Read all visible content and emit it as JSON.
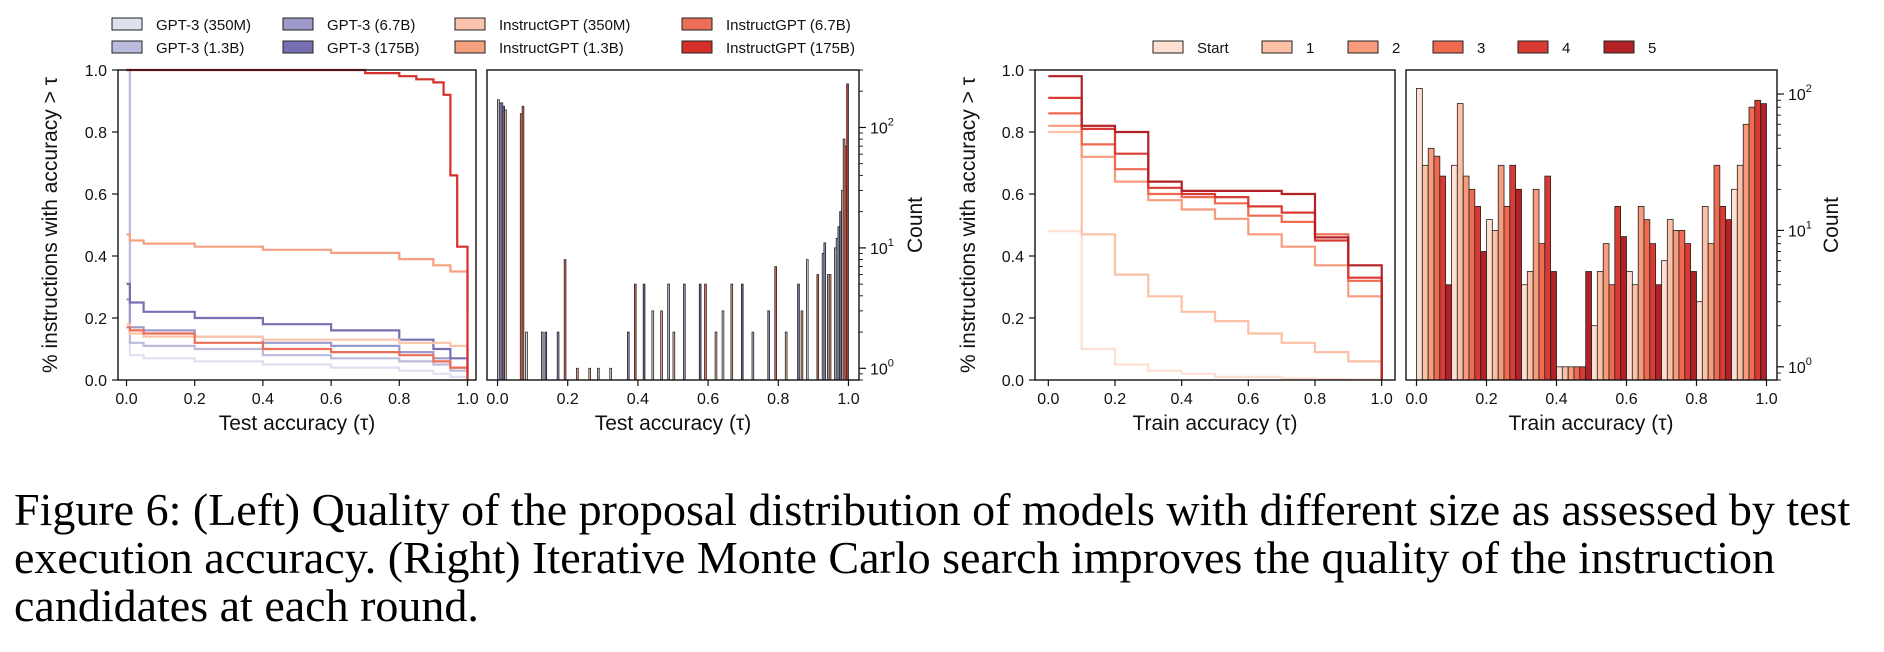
{
  "colors": {
    "gpt350": "#e0e1f0",
    "gpt13": "#bbbcdd",
    "gpt67": "#9c9acb",
    "gpt175": "#7670b2",
    "ins350": "#f9c4ab",
    "ins13": "#f4a081",
    "ins67": "#ec6e56",
    "ins175": "#d52e2b",
    "r0": "#fde0d2",
    "r1": "#fcc0a4",
    "r2": "#f89a7c",
    "r3": "#f06a50",
    "r4": "#d93a34",
    "r5": "#b32127"
  },
  "legend_left": [
    "GPT-3 (350M)",
    "GPT-3 (1.3B)",
    "GPT-3 (6.7B)",
    "GPT-3 (175B)",
    "InstructGPT (350M)",
    "InstructGPT (1.3B)",
    "InstructGPT (6.7B)",
    "InstructGPT (175B)"
  ],
  "legend_right": [
    "Start",
    "1",
    "2",
    "3",
    "4",
    "5"
  ],
  "caption": "Figure 6: (Left) Quality of the proposal distribution of models with different size as assessed by test execution accuracy. (Right) Iterative Monte Carlo search improves the quality of the instruction candidates at each round.",
  "chart_data": [
    {
      "type": "line",
      "subtype": "step",
      "xlabel": "Test accuracy (τ)",
      "ylabel": "% instructions with accuracy > τ",
      "xlim": [
        0,
        1
      ],
      "ylim": [
        0,
        1
      ],
      "xticks": [
        "0.0",
        "0.2",
        "0.4",
        "0.6",
        "0.8",
        "1.0"
      ],
      "yticks": [
        "0.0",
        "0.2",
        "0.4",
        "0.6",
        "0.8",
        "1.0"
      ],
      "series": [
        {
          "name": "GPT-3 (350M)",
          "color_key": "gpt350",
          "x": [
            0,
            0.01,
            0.05,
            0.2,
            0.4,
            0.6,
            0.8,
            0.9,
            0.95,
            1.0
          ],
          "y": [
            1.0,
            0.08,
            0.07,
            0.06,
            0.05,
            0.04,
            0.03,
            0.02,
            0.01,
            0.0
          ]
        },
        {
          "name": "GPT-3 (1.3B)",
          "color_key": "gpt13",
          "x": [
            0,
            0.01,
            0.05,
            0.2,
            0.4,
            0.6,
            0.8,
            0.9,
            0.95,
            1.0
          ],
          "y": [
            1.0,
            0.12,
            0.11,
            0.1,
            0.08,
            0.07,
            0.06,
            0.05,
            0.03,
            0.01
          ]
        },
        {
          "name": "GPT-3 (6.7B)",
          "color_key": "gpt67",
          "x": [
            0,
            0.01,
            0.05,
            0.2,
            0.4,
            0.6,
            0.8,
            0.9,
            0.95,
            1.0
          ],
          "y": [
            0.26,
            0.17,
            0.16,
            0.14,
            0.12,
            0.11,
            0.09,
            0.07,
            0.04,
            0.02
          ]
        },
        {
          "name": "GPT-3 (175B)",
          "color_key": "gpt175",
          "x": [
            0,
            0.01,
            0.05,
            0.2,
            0.4,
            0.6,
            0.8,
            0.9,
            0.95,
            1.0
          ],
          "y": [
            0.31,
            0.25,
            0.22,
            0.2,
            0.18,
            0.16,
            0.13,
            0.1,
            0.07,
            0.04
          ]
        },
        {
          "name": "InstructGPT (350M)",
          "color_key": "ins350",
          "x": [
            0,
            0.01,
            0.05,
            0.2,
            0.4,
            0.6,
            0.8,
            0.9,
            0.95,
            1.0
          ],
          "y": [
            0.18,
            0.15,
            0.14,
            0.14,
            0.13,
            0.13,
            0.12,
            0.12,
            0.11,
            0.02
          ]
        },
        {
          "name": "InstructGPT (1.3B)",
          "color_key": "ins13",
          "x": [
            0,
            0.01,
            0.05,
            0.2,
            0.4,
            0.6,
            0.8,
            0.9,
            0.95,
            1.0
          ],
          "y": [
            0.47,
            0.45,
            0.44,
            0.43,
            0.42,
            0.41,
            0.39,
            0.37,
            0.35,
            0.22
          ]
        },
        {
          "name": "InstructGPT (6.7B)",
          "color_key": "ins67",
          "x": [
            0,
            0.01,
            0.05,
            0.2,
            0.4,
            0.6,
            0.8,
            0.9,
            0.95,
            1.0
          ],
          "y": [
            0.17,
            0.16,
            0.15,
            0.12,
            0.1,
            0.09,
            0.08,
            0.06,
            0.04,
            0.01
          ]
        },
        {
          "name": "InstructGPT (175B)",
          "color_key": "ins175",
          "x": [
            0,
            0.3,
            0.5,
            0.7,
            0.8,
            0.85,
            0.9,
            0.93,
            0.95,
            0.97,
            1.0
          ],
          "y": [
            1.0,
            1.0,
            1.0,
            0.99,
            0.98,
            0.97,
            0.96,
            0.92,
            0.66,
            0.43,
            0.0
          ]
        }
      ]
    },
    {
      "type": "bar",
      "subtype": "histogram",
      "yscale": "log",
      "xlabel": "Test accuracy (τ)",
      "ylabel": "Count",
      "xlim": [
        0,
        1
      ],
      "ylim": [
        0.8,
        300
      ],
      "xticks": [
        "0.0",
        "0.2",
        "0.4",
        "0.6",
        "0.8",
        "1.0"
      ],
      "yticks": [
        1,
        10,
        100
      ],
      "bin_width": 0.04,
      "series": [
        {
          "name": "GPT-3 (350M)",
          "color_key": "gpt350",
          "bins": [
            0.0,
            0.08,
            0.32,
            0.44,
            0.64,
            0.88,
            0.96
          ],
          "counts": [
            170,
            2,
            1,
            3,
            3,
            8,
            10
          ]
        },
        {
          "name": "GPT-3 (1.3B)",
          "color_key": "gpt13",
          "bins": [
            0.0,
            0.12,
            0.28,
            0.48,
            0.72,
            0.92,
            0.96
          ],
          "counts": [
            160,
            2,
            1,
            5,
            2,
            9,
            12
          ]
        },
        {
          "name": "GPT-3 (6.7B)",
          "color_key": "gpt67",
          "bins": [
            0.0,
            0.16,
            0.36,
            0.52,
            0.76,
            0.92,
            0.96
          ],
          "counts": [
            160,
            2,
            2,
            5,
            3,
            11,
            15
          ]
        },
        {
          "name": "GPT-3 (175B)",
          "color_key": "gpt175",
          "bins": [
            0.0,
            0.12,
            0.4,
            0.56,
            0.68,
            0.84,
            0.96
          ],
          "counts": [
            150,
            2,
            5,
            5,
            5,
            5,
            20
          ]
        },
        {
          "name": "InstructGPT (350M)",
          "color_key": "ins350",
          "bins": [
            0.0,
            0.24,
            0.48,
            0.6,
            0.8,
            0.92,
            0.96
          ],
          "counts": [
            140,
            1,
            2,
            2,
            2,
            6,
            30
          ]
        },
        {
          "name": "InstructGPT (1.3B)",
          "color_key": "ins13",
          "bins": [
            0.04,
            0.2,
            0.44,
            0.64,
            0.84,
            0.92,
            0.96
          ],
          "counts": [
            130,
            1,
            3,
            5,
            3,
            6,
            80
          ]
        },
        {
          "name": "InstructGPT (6.7B)",
          "color_key": "ins67",
          "bins": [
            0.04,
            0.16,
            0.36,
            0.56,
            0.76,
            0.88,
            0.96
          ],
          "counts": [
            150,
            8,
            5,
            5,
            7,
            6,
            70
          ]
        },
        {
          "name": "InstructGPT (175B)",
          "color_key": "ins175",
          "bins": [
            0.96
          ],
          "counts": [
            230
          ]
        }
      ]
    },
    {
      "type": "line",
      "subtype": "step",
      "xlabel": "Train accuracy (τ)",
      "ylabel": "% instructions with accuracy > τ",
      "xlim": [
        0,
        1
      ],
      "ylim": [
        0,
        1
      ],
      "xticks": [
        "0.0",
        "0.2",
        "0.4",
        "0.6",
        "0.8",
        "1.0"
      ],
      "yticks": [
        "0.0",
        "0.2",
        "0.4",
        "0.6",
        "0.8",
        "1.0"
      ],
      "series": [
        {
          "name": "Start",
          "color_key": "r0",
          "x": [
            0,
            0.1,
            0.2,
            0.3,
            0.4,
            0.5,
            0.6,
            0.7,
            0.8,
            0.9,
            1.0
          ],
          "y": [
            0.48,
            0.1,
            0.05,
            0.03,
            0.02,
            0.01,
            0.01,
            0.005,
            0.003,
            0.002,
            0.0
          ]
        },
        {
          "name": "1",
          "color_key": "r1",
          "x": [
            0,
            0.1,
            0.2,
            0.3,
            0.4,
            0.5,
            0.6,
            0.7,
            0.8,
            0.9,
            1.0
          ],
          "y": [
            0.8,
            0.47,
            0.34,
            0.27,
            0.22,
            0.19,
            0.15,
            0.12,
            0.09,
            0.06,
            0.0
          ]
        },
        {
          "name": "2",
          "color_key": "r2",
          "x": [
            0,
            0.1,
            0.2,
            0.3,
            0.4,
            0.5,
            0.6,
            0.7,
            0.8,
            0.9,
            1.0
          ],
          "y": [
            0.82,
            0.72,
            0.64,
            0.58,
            0.55,
            0.52,
            0.47,
            0.43,
            0.37,
            0.27,
            0.0
          ]
        },
        {
          "name": "3",
          "color_key": "r3",
          "x": [
            0,
            0.1,
            0.2,
            0.3,
            0.4,
            0.5,
            0.6,
            0.7,
            0.8,
            0.9,
            1.0
          ],
          "y": [
            0.86,
            0.76,
            0.68,
            0.6,
            0.59,
            0.57,
            0.53,
            0.51,
            0.47,
            0.32,
            0.0
          ]
        },
        {
          "name": "4",
          "color_key": "r4",
          "x": [
            0,
            0.1,
            0.2,
            0.3,
            0.4,
            0.5,
            0.6,
            0.7,
            0.8,
            0.9,
            1.0
          ],
          "y": [
            0.91,
            0.81,
            0.73,
            0.62,
            0.6,
            0.59,
            0.56,
            0.54,
            0.45,
            0.33,
            0.0
          ]
        },
        {
          "name": "5",
          "color_key": "r5",
          "x": [
            0,
            0.1,
            0.2,
            0.3,
            0.4,
            0.5,
            0.6,
            0.7,
            0.8,
            0.9,
            1.0
          ],
          "y": [
            0.98,
            0.82,
            0.8,
            0.64,
            0.61,
            0.61,
            0.61,
            0.6,
            0.46,
            0.37,
            0.0
          ]
        }
      ]
    },
    {
      "type": "bar",
      "subtype": "histogram",
      "yscale": "log",
      "xlabel": "Train accuracy (τ)",
      "ylabel": "Count",
      "xlim": [
        0,
        1
      ],
      "ylim": [
        0.8,
        150
      ],
      "xticks": [
        "0.0",
        "0.2",
        "0.4",
        "0.6",
        "0.8",
        "1.0"
      ],
      "yticks": [
        1,
        10,
        100
      ],
      "bin_width": 0.1,
      "series": [
        {
          "name": "Start",
          "color_key": "r0",
          "counts": [
            110,
            30,
            12,
            4,
            1,
            2,
            5,
            6,
            3,
            20
          ]
        },
        {
          "name": "1",
          "color_key": "r1",
          "counts": [
            30,
            85,
            10,
            5,
            1,
            5,
            4,
            12,
            15,
            30
          ]
        },
        {
          "name": "2",
          "color_key": "r2",
          "counts": [
            40,
            25,
            30,
            20,
            1,
            8,
            15,
            10,
            8,
            60
          ]
        },
        {
          "name": "3",
          "color_key": "r3",
          "counts": [
            35,
            20,
            15,
            8,
            1,
            4,
            12,
            10,
            30,
            80
          ]
        },
        {
          "name": "4",
          "color_key": "r4",
          "counts": [
            25,
            15,
            30,
            25,
            1,
            15,
            8,
            8,
            15,
            90
          ]
        },
        {
          "name": "5",
          "color_key": "r5",
          "counts": [
            4,
            7,
            20,
            5,
            5,
            9,
            4,
            5,
            12,
            85
          ]
        }
      ]
    }
  ]
}
